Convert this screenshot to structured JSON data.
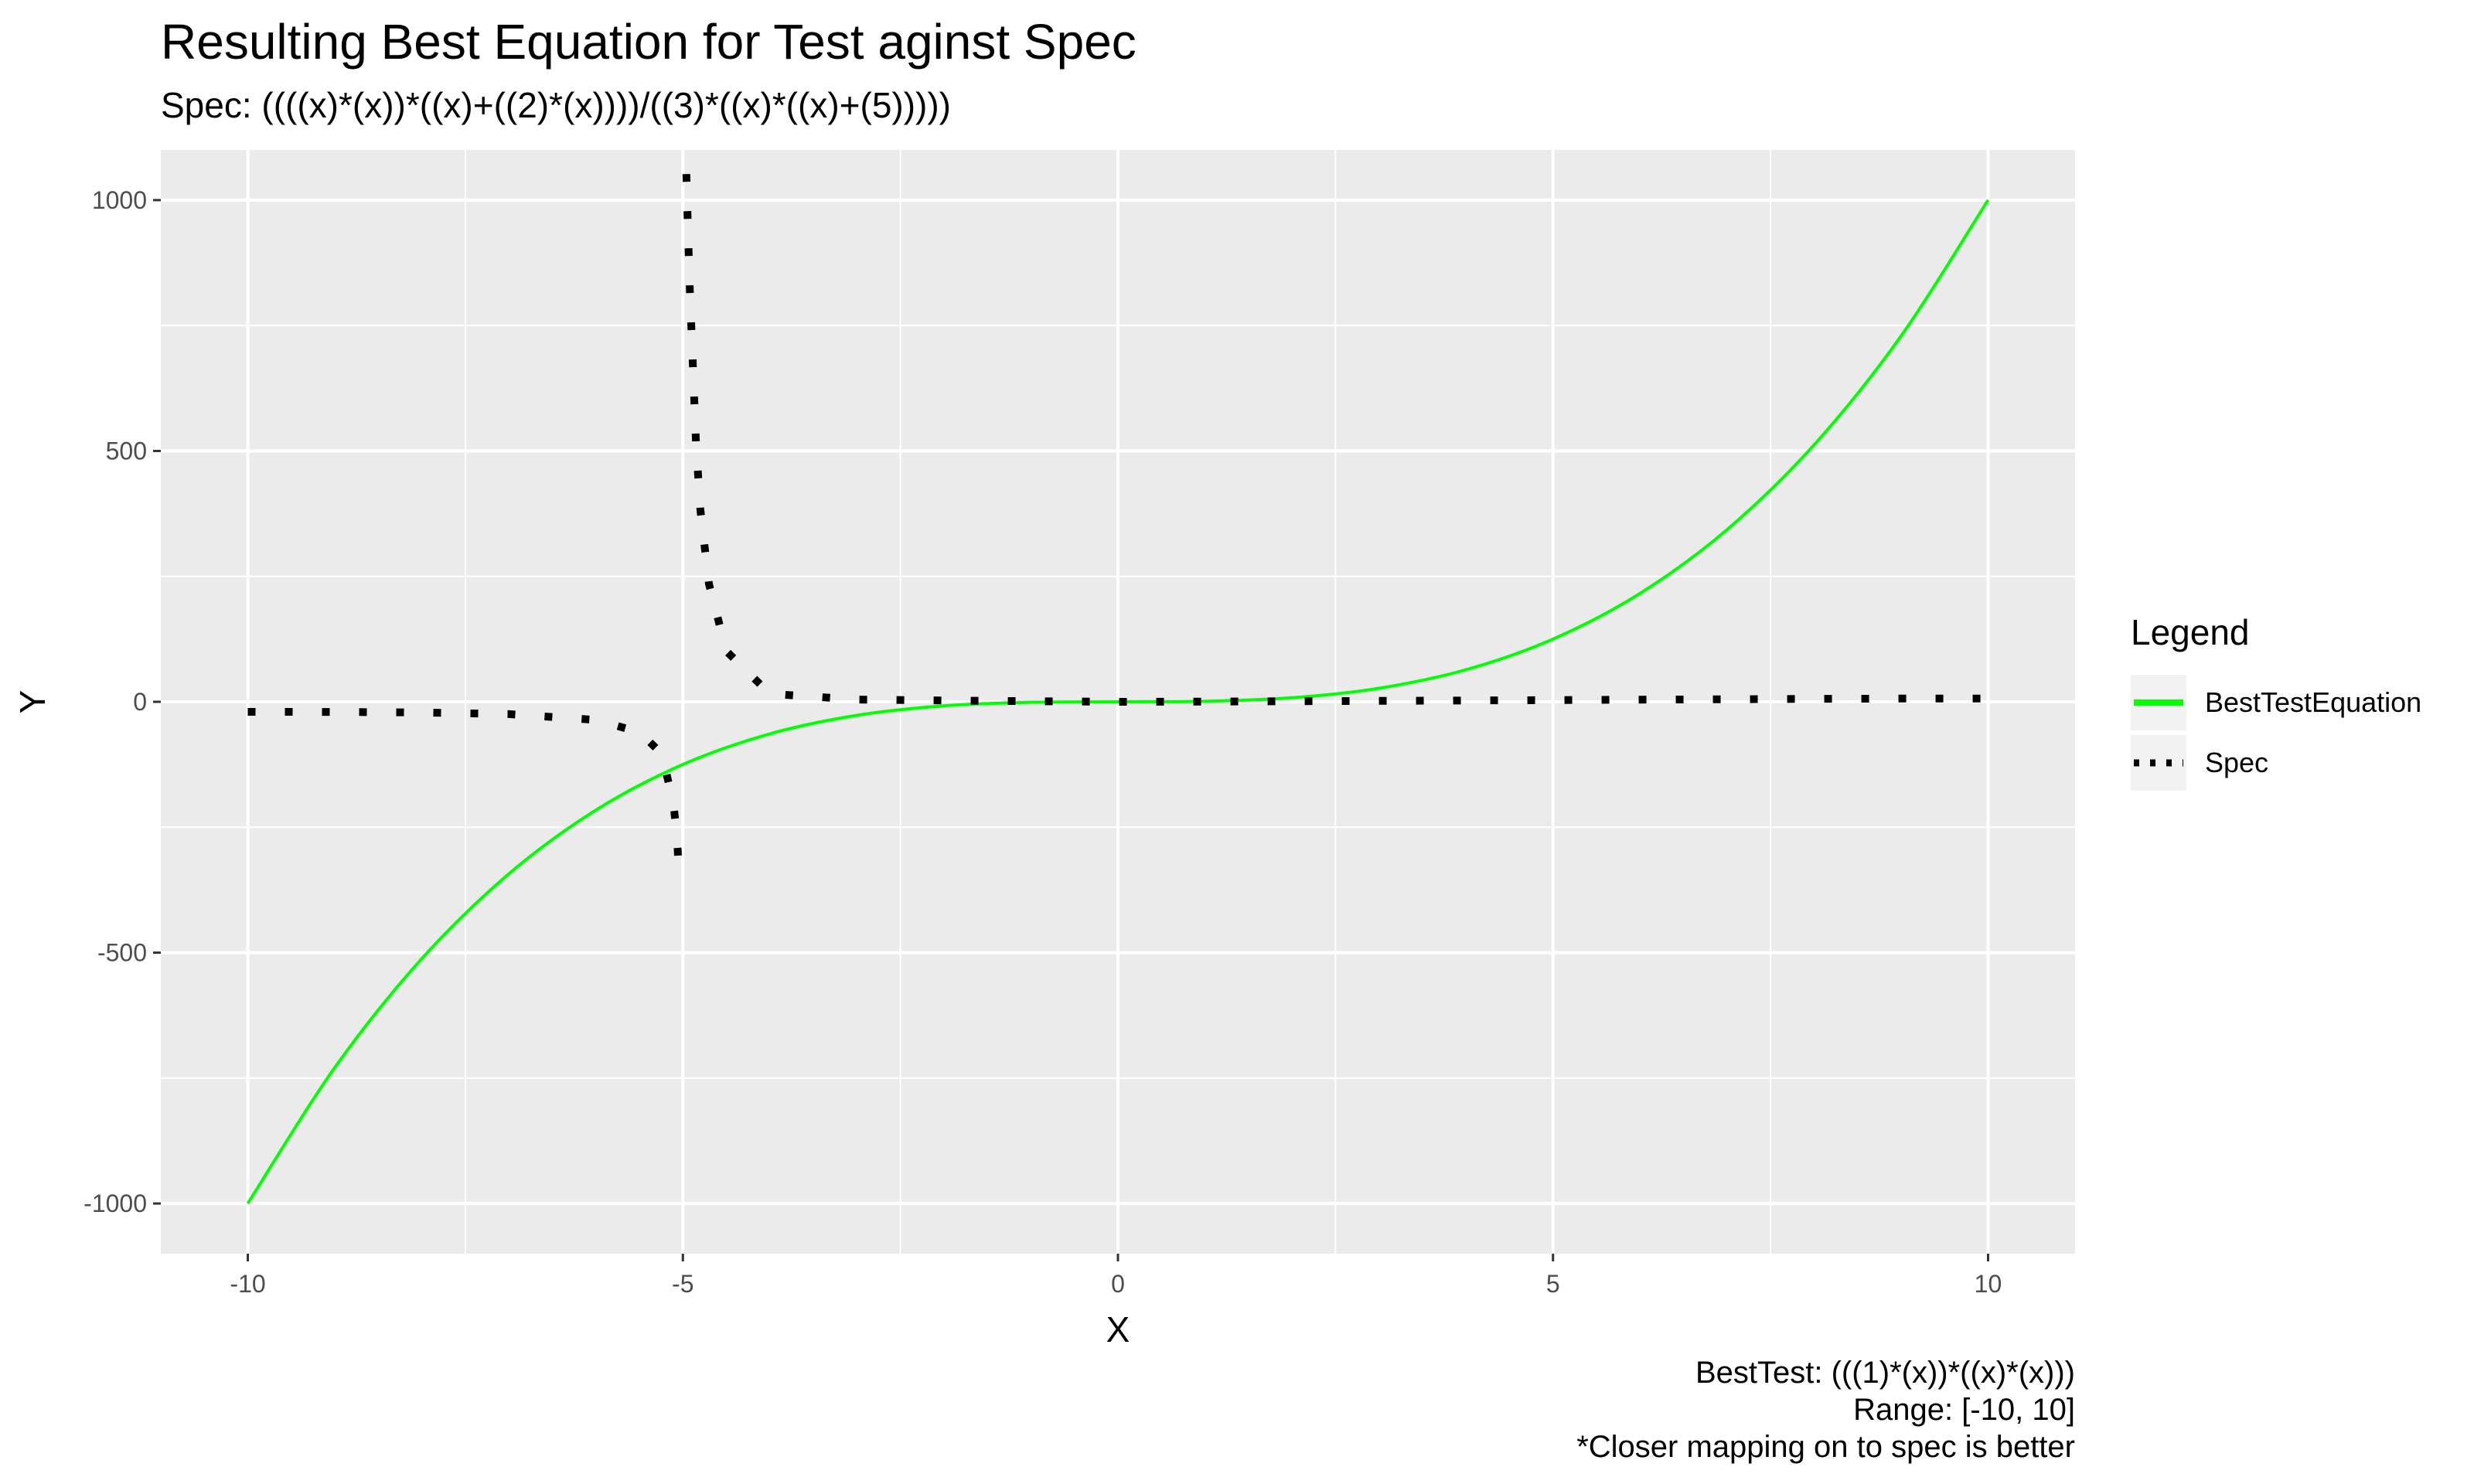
{
  "chart_data": {
    "type": "line",
    "title": "Resulting Best Equation for Test aginst Spec",
    "subtitle": "Spec: ((((x)*(x))*((x)+((2)*(x))))/((3)*((x)*((x)+(5)))))",
    "xlabel": "X",
    "ylabel": "Y",
    "xlim": [
      -11,
      11
    ],
    "ylim": [
      -1100,
      1100
    ],
    "x_ticks": [
      -10,
      -5,
      0,
      5,
      10
    ],
    "x_tick_labels": [
      "-10",
      "-5",
      "0",
      "5",
      "10"
    ],
    "y_ticks": [
      -1000,
      -500,
      0,
      500,
      1000
    ],
    "y_tick_labels": [
      "-1000",
      "-500",
      "0",
      "500",
      "1000"
    ],
    "grid": true,
    "legend_position": "right",
    "legend_title": "Legend",
    "series": [
      {
        "name": "BestTestEquation",
        "color": "#00ff00",
        "style": "solid",
        "x": [
          -10,
          -9,
          -8,
          -7,
          -6,
          -5,
          -4,
          -3,
          -2,
          -1,
          0,
          1,
          2,
          3,
          4,
          5,
          6,
          7,
          8,
          9,
          10
        ],
        "y": [
          -1000,
          -729,
          -512,
          -343,
          -216,
          -125,
          -64,
          -27,
          -8,
          -1,
          0,
          1,
          8,
          27,
          64,
          125,
          216,
          343,
          512,
          729,
          1000
        ]
      },
      {
        "name": "Spec",
        "color": "#000000",
        "style": "dotted",
        "x": [
          -10,
          -9,
          -8,
          -7,
          -6,
          -5.5,
          -5.3,
          -5.2,
          -5.15,
          -5.12,
          -5.1,
          -5.08,
          -5.06,
          -5.05,
          -5.04,
          -4.96,
          -4.95,
          -4.94,
          -4.92,
          -4.9,
          -4.85,
          -4.8,
          -4.7,
          -4.5,
          -4,
          -3,
          -2,
          -1,
          0,
          1,
          2,
          3,
          4,
          5,
          6,
          7,
          8,
          9,
          10
        ],
        "y": [
          -20,
          -20.25,
          -21.33,
          -24.5,
          -36,
          -60.5,
          -93.6,
          -135.2,
          -171.7,
          -202.8,
          -216.7,
          -248.1,
          -292.6,
          -325,
          -353,
          1052,
          990,
          930,
          820,
          735,
          517.5,
          384,
          235,
          101,
          16,
          4.5,
          2.67,
          1.25,
          0,
          0.5,
          1.14,
          1.88,
          2.67,
          3.33,
          4.36,
          5.1,
          5.85,
          6.43,
          6.67
        ]
      }
    ]
  },
  "caption": {
    "line1": "BestTest: (((1)*(x))*((x)*(x)))",
    "line2": "Range: [-10, 10]",
    "line3": "*Closer mapping on to spec is better"
  }
}
